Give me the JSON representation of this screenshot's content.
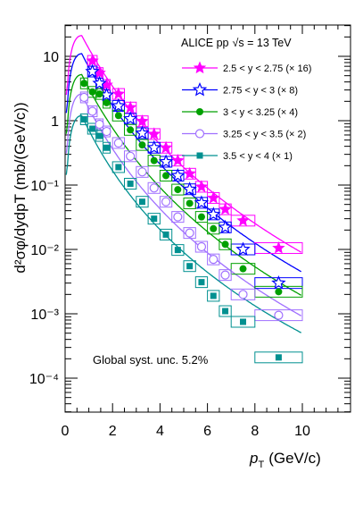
{
  "chart_data": {
    "type": "scatter",
    "experiment": "ALICE pp",
    "energy_prefix": "√s = 13 TeV",
    "xlabel_main": "p",
    "xlabel_sub": "T",
    "xlabel_unit": "(GeV/c)",
    "ylabel": "d²σφ/dydpT (mb/(GeV/c))",
    "xlim": [
      0,
      10
    ],
    "ylim": [
      3e-05,
      30
    ],
    "yscale": "log",
    "x_ticks": [
      "0",
      "2",
      "4",
      "6",
      "8",
      "10"
    ],
    "y_ticks": [
      "10",
      "1",
      "10⁻¹",
      "10⁻²",
      "10⁻³",
      "10⁻⁴"
    ],
    "annotation": "Global syst. unc. 5.2%",
    "legend_position": "top-right",
    "x": [
      0.5,
      0.8,
      1.15,
      1.45,
      1.75,
      2.25,
      2.75,
      3.25,
      3.75,
      4.25,
      4.75,
      5.25,
      5.75,
      6.25,
      6.75,
      7.5,
      9.0
    ],
    "series": [
      {
        "name": "2.5 < y < 2.75 (× 16)",
        "color": "#ff00ff",
        "marker": "star-filled",
        "values": [
          null,
          null,
          8.5,
          5.5,
          3.6,
          2.6,
          1.6,
          0.98,
          0.62,
          0.38,
          0.24,
          0.15,
          0.094,
          0.063,
          0.042,
          0.028,
          0.0105
        ]
      },
      {
        "name": "2.75 < y < 3 (× 8)",
        "color": "#0000ff",
        "marker": "star-open",
        "values": [
          null,
          null,
          5.8,
          3.8,
          2.5,
          1.7,
          1.07,
          0.64,
          0.38,
          0.23,
          0.14,
          0.086,
          0.053,
          0.035,
          0.022,
          0.01,
          0.003
        ]
      },
      {
        "name": "3 < y < 3.25 (× 4)",
        "color": "#00a000",
        "marker": "circle-filled",
        "values": [
          null,
          3.8,
          2.8,
          2.6,
          1.9,
          1.2,
          0.72,
          0.42,
          0.24,
          0.14,
          0.085,
          0.052,
          0.032,
          0.021,
          0.012,
          0.005,
          0.0022
        ]
      },
      {
        "name": "3.25 < y < 3.5 (× 2)",
        "color": "#a070ff",
        "marker": "circle-open",
        "values": [
          null,
          2.3,
          1.4,
          0.88,
          0.68,
          0.45,
          0.28,
          0.16,
          0.09,
          0.055,
          0.032,
          0.018,
          0.011,
          0.007,
          0.004,
          0.002,
          0.00095
        ]
      },
      {
        "name": "3.5 < y < 4 (× 1)",
        "color": "#009090",
        "marker": "square-filled",
        "values": [
          null,
          1.05,
          0.75,
          0.58,
          0.38,
          0.19,
          0.105,
          0.055,
          0.03,
          0.017,
          0.0098,
          0.0055,
          0.0031,
          0.0019,
          0.0011,
          0.00075,
          0.00021
        ]
      }
    ]
  }
}
